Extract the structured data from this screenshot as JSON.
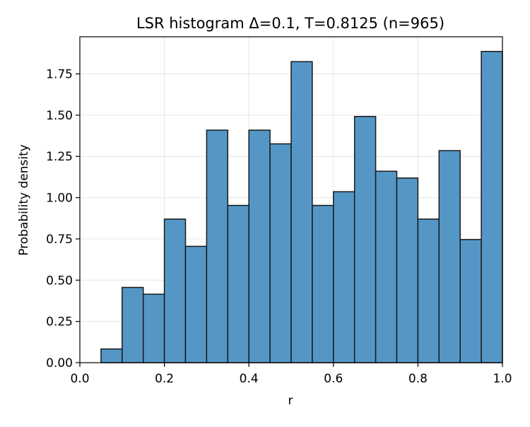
{
  "chart_data": {
    "type": "bar",
    "title": "LSR histogram Δ=0.1, T=0.8125 (n=965)",
    "xlabel": "r",
    "ylabel": "Probability density",
    "xlim": [
      0.0,
      1.0
    ],
    "ylim": [
      0.0,
      1.975
    ],
    "grid": true,
    "bin_width": 0.05,
    "bin_edges": [
      0.0,
      0.05,
      0.1,
      0.15,
      0.2,
      0.25,
      0.3,
      0.35,
      0.4,
      0.45,
      0.5,
      0.55,
      0.6,
      0.65,
      0.7,
      0.75,
      0.8,
      0.85,
      0.9,
      0.95,
      1.0
    ],
    "values": [
      0.0,
      0.083,
      0.456,
      0.415,
      0.87,
      0.705,
      1.409,
      0.953,
      1.409,
      1.326,
      1.824,
      0.953,
      1.036,
      1.492,
      1.16,
      1.119,
      0.87,
      1.285,
      0.746,
      1.886
    ],
    "x_ticks": [
      0.0,
      0.2,
      0.4,
      0.6,
      0.8,
      1.0
    ],
    "x_tick_labels": [
      "0.0",
      "0.2",
      "0.4",
      "0.6",
      "0.8",
      "1.0"
    ],
    "y_ticks": [
      0.0,
      0.25,
      0.5,
      0.75,
      1.0,
      1.25,
      1.5,
      1.75
    ],
    "y_tick_labels": [
      "0.00",
      "0.25",
      "0.50",
      "0.75",
      "1.00",
      "1.25",
      "1.50",
      "1.75"
    ],
    "colors": {
      "bar_fill": "#5497c6",
      "bar_edge": "#1a1a1a",
      "grid": "#e6e6e6",
      "axes": "#000000"
    }
  }
}
